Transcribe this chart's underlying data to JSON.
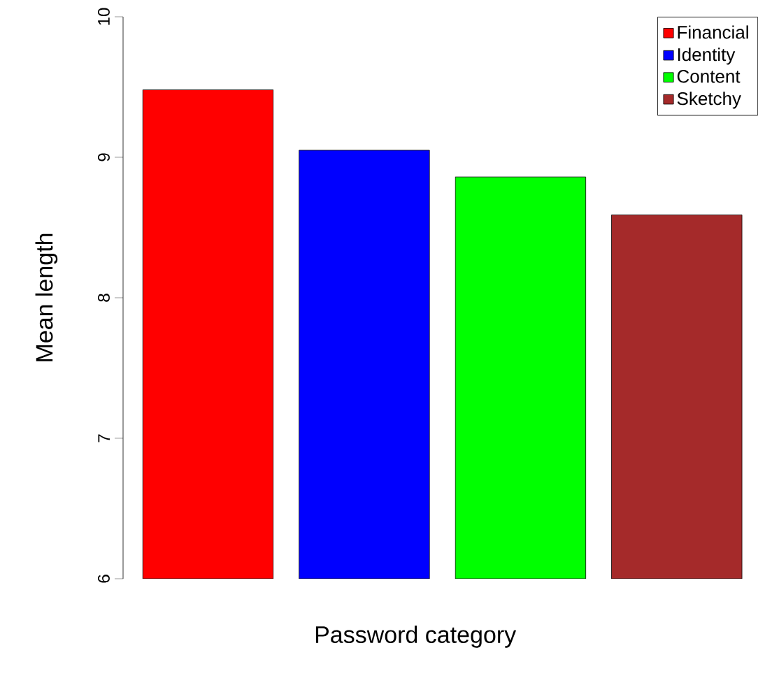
{
  "chart_data": {
    "type": "bar",
    "xlabel": "Password category",
    "ylabel": "Mean length",
    "categories": [
      null
    ],
    "series": [
      {
        "name": "Financial",
        "color": "#ff0000",
        "values": [
          9.48
        ]
      },
      {
        "name": "Identity",
        "color": "#0000ff",
        "values": [
          9.05
        ]
      },
      {
        "name": "Content",
        "color": "#00ff00",
        "values": [
          8.86
        ]
      },
      {
        "name": "Sketchy",
        "color": "#a52a2a",
        "values": [
          8.59
        ]
      }
    ],
    "ylim": [
      6,
      10
    ],
    "yticks": [
      6,
      7,
      8,
      9,
      10
    ],
    "tick_labels": "y",
    "legend": "top right",
    "grid": false
  }
}
